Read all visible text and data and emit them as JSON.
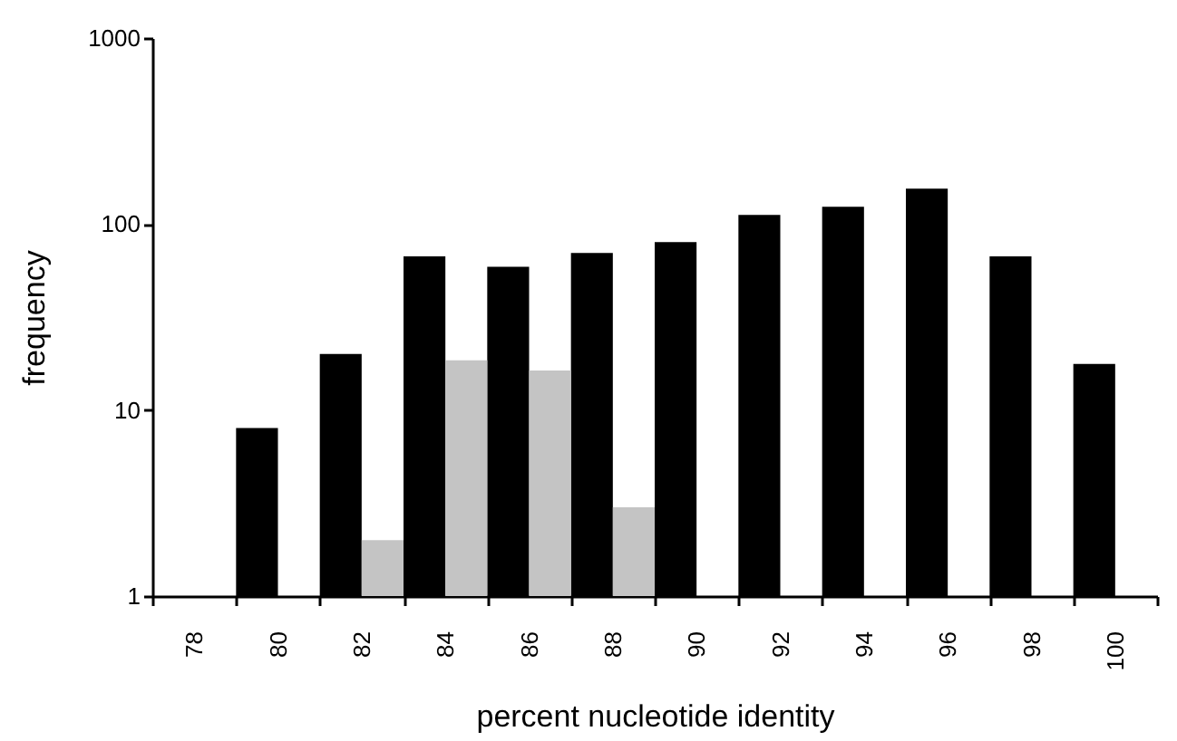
{
  "chart_data": {
    "type": "bar",
    "xlabel": "percent nucleotide identity",
    "ylabel": "frequency",
    "categories": [
      "78",
      "80",
      "82",
      "84",
      "86",
      "88",
      "90",
      "92",
      "94",
      "96",
      "98",
      "100"
    ],
    "series": [
      {
        "color": "#000000",
        "values": [
          null,
          8,
          20,
          67,
          59,
          70,
          80,
          112,
          124,
          155,
          67,
          17.7
        ]
      },
      {
        "color": "#c4c4c4",
        "values": [
          null,
          null,
          2,
          18.5,
          16.3,
          3,
          null,
          null,
          null,
          null,
          null,
          null
        ]
      }
    ],
    "log": "y",
    "ylim": [
      1,
      1000
    ],
    "yticks": [
      1,
      10,
      100,
      1000
    ],
    "grid": false
  }
}
